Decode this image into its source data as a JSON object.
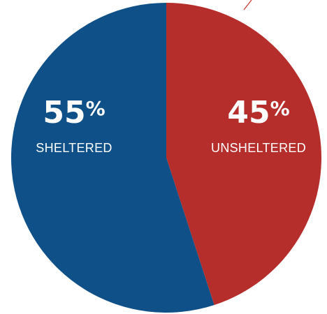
{
  "chart_data": {
    "type": "pie",
    "title": "",
    "slices": [
      {
        "label": "UNSHELTERED",
        "value": 45,
        "display_value": "45",
        "unit": "%",
        "color": "#b52e2b"
      },
      {
        "label": "SHELTERED",
        "value": 55,
        "display_value": "55",
        "unit": "%",
        "color": "#0e5087"
      }
    ],
    "start_angle_deg": 0,
    "direction": "clockwise",
    "legend": "none"
  },
  "decoration": {
    "accent_line_color": "#c9302c"
  }
}
